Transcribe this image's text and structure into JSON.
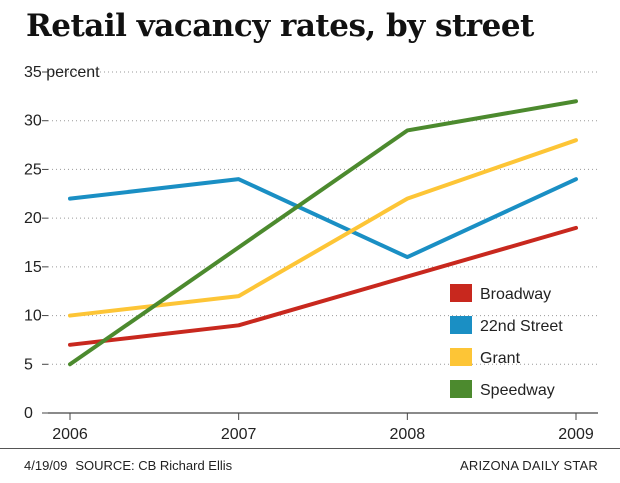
{
  "chart_data": {
    "type": "line",
    "title": "Retail vacancy rates, by street",
    "ylabel": "percent",
    "x": [
      "2006",
      "2007",
      "2008",
      "2009"
    ],
    "ylim": [
      0,
      35
    ],
    "yticks": [
      0,
      5,
      10,
      15,
      20,
      25,
      30,
      35
    ],
    "ytick_labels": [
      "0",
      "5",
      "10",
      "15",
      "20",
      "25",
      "30",
      "35 percent"
    ],
    "grid": "dotted horizontal",
    "legend_position": "lower-right",
    "series": [
      {
        "name": "Broadway",
        "color": "#c8281e",
        "values": [
          7,
          9,
          14,
          19
        ]
      },
      {
        "name": "22nd Street",
        "color": "#1a8fc4",
        "values": [
          22,
          24,
          16,
          24
        ]
      },
      {
        "name": "Grant",
        "color": "#fdc536",
        "values": [
          10,
          12,
          22,
          28
        ]
      },
      {
        "name": "Speedway",
        "color": "#4c8a2e",
        "values": [
          5,
          17,
          29,
          32
        ]
      }
    ]
  },
  "footer": {
    "date": "4/19/09",
    "source": "SOURCE: CB Richard Ellis",
    "publisher": "ARIZONA DAILY STAR"
  }
}
